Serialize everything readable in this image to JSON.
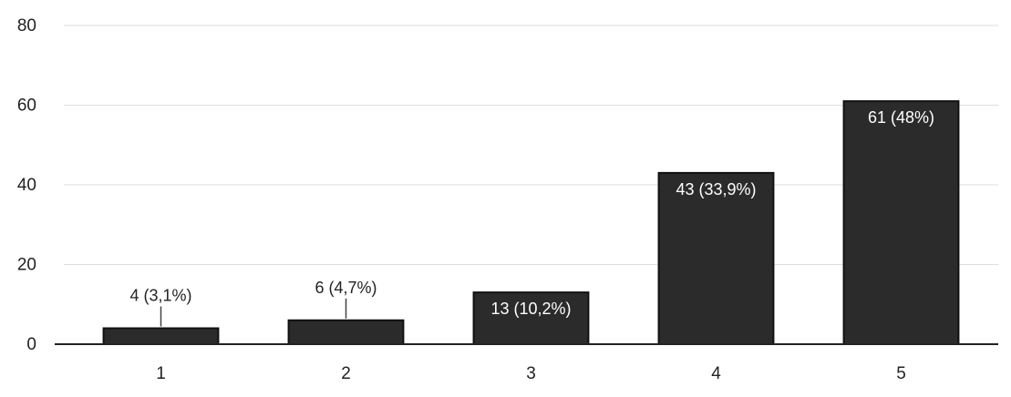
{
  "chart_data": {
    "type": "bar",
    "categories": [
      "1",
      "2",
      "3",
      "4",
      "5"
    ],
    "values": [
      4,
      6,
      13,
      43,
      61
    ],
    "data_labels": [
      "4 (3,1%)",
      "6 (4,7%)",
      "13 (10,2%)",
      "43 (33,9%)",
      "61 (48%)"
    ],
    "ylim": [
      0,
      80
    ],
    "y_ticks": [
      "0",
      "20",
      "40",
      "60",
      "80"
    ],
    "grid": true,
    "colors": {
      "bar": "#2b2b2b",
      "label_inside": "#ffffff",
      "label_outside": "#222222"
    }
  }
}
